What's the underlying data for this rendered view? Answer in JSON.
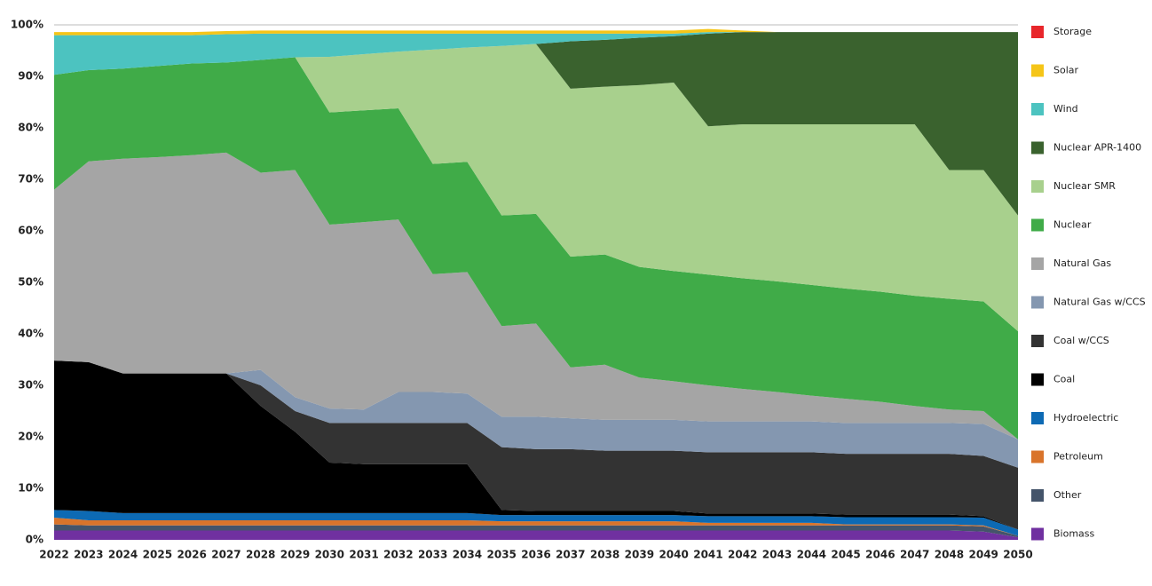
{
  "chart_data": {
    "type": "stacked_area",
    "categories": [
      "2022",
      "2023",
      "2024",
      "2025",
      "2026",
      "2027",
      "2028",
      "2029",
      "2030",
      "2031",
      "2032",
      "2033",
      "2034",
      "2035",
      "2036",
      "2037",
      "2038",
      "2039",
      "2040",
      "2041",
      "2042",
      "2043",
      "2044",
      "2045",
      "2046",
      "2047",
      "2048",
      "2049",
      "2050"
    ],
    "ylim": [
      0,
      100
    ],
    "yticks": [
      {
        "value": 0,
        "label": "0%"
      },
      {
        "value": 10,
        "label": "10%"
      },
      {
        "value": 20,
        "label": "20%"
      },
      {
        "value": 30,
        "label": "30%"
      },
      {
        "value": 40,
        "label": "40%"
      },
      {
        "value": 50,
        "label": "50%"
      },
      {
        "value": 60,
        "label": "60%"
      },
      {
        "value": 70,
        "label": "70%"
      },
      {
        "value": 80,
        "label": "80%"
      },
      {
        "value": 90,
        "label": "90%"
      },
      {
        "value": 100,
        "label": "100%"
      }
    ],
    "series": [
      {
        "name": "Biomass",
        "color": "#7030a0",
        "values": [
          1.8,
          1.8,
          1.8,
          1.8,
          1.8,
          1.8,
          1.8,
          1.8,
          1.8,
          1.8,
          1.8,
          1.8,
          1.8,
          1.8,
          1.8,
          1.8,
          1.8,
          1.8,
          1.8,
          1.8,
          1.8,
          1.8,
          1.8,
          1.8,
          1.8,
          1.8,
          1.8,
          1.6,
          0.5
        ]
      },
      {
        "name": "Other",
        "color": "#44546a",
        "values": [
          1.2,
          1.0,
          1.0,
          1.0,
          1.0,
          1.0,
          1.0,
          1.0,
          1.0,
          1.0,
          1.0,
          1.0,
          1.0,
          1.0,
          1.0,
          1.0,
          1.0,
          1.0,
          1.0,
          1.0,
          1.0,
          1.0,
          1.0,
          1.0,
          1.0,
          1.0,
          1.0,
          1.0,
          0.3
        ]
      },
      {
        "name": "Petroleum",
        "color": "#d9742b",
        "values": [
          1.3,
          1.0,
          1.0,
          1.0,
          1.0,
          1.0,
          1.0,
          1.0,
          1.0,
          1.0,
          1.0,
          1.0,
          1.0,
          0.8,
          0.8,
          0.8,
          0.8,
          0.8,
          0.8,
          0.5,
          0.5,
          0.5,
          0.5,
          0.2,
          0.2,
          0.2,
          0.2,
          0.2,
          0
        ]
      },
      {
        "name": "Hydroelectric",
        "color": "#0d6ab4",
        "values": [
          1.5,
          1.8,
          1.4,
          1.4,
          1.4,
          1.4,
          1.4,
          1.4,
          1.4,
          1.4,
          1.4,
          1.4,
          1.4,
          1.2,
          1.2,
          1.2,
          1.2,
          1.2,
          1.2,
          1.3,
          1.3,
          1.3,
          1.3,
          1.4,
          1.4,
          1.4,
          1.4,
          1.5,
          1.2
        ]
      },
      {
        "name": "Coal",
        "color": "#000000",
        "values": [
          29,
          28.9,
          27.1,
          27.1,
          27.1,
          27.1,
          20.8,
          15.8,
          9.8,
          9.5,
          9.5,
          9.5,
          9.5,
          1.0,
          0.8,
          0.8,
          0.8,
          0.8,
          0.8,
          0.5,
          0.5,
          0.5,
          0.5,
          0.5,
          0.5,
          0.5,
          0.5,
          0.3,
          0
        ]
      },
      {
        "name": "Coal w/CCS",
        "color": "#333333",
        "values": [
          0,
          0,
          0,
          0,
          0,
          0,
          4,
          4,
          7.7,
          8,
          8,
          8,
          8,
          12.2,
          12,
          12,
          11.7,
          11.7,
          11.7,
          11.9,
          11.9,
          11.9,
          11.9,
          11.8,
          11.8,
          11.8,
          11.8,
          11.7,
          12
        ]
      },
      {
        "name": "Natural Gas w/CCS",
        "color": "#8497b0",
        "values": [
          0,
          0,
          0,
          0,
          0,
          0,
          3,
          2.7,
          2.8,
          2.6,
          6,
          6,
          5.7,
          5.9,
          6.3,
          6,
          6,
          6,
          6,
          6,
          6,
          6,
          6,
          6,
          6,
          6,
          6,
          6.2,
          5.5
        ]
      },
      {
        "name": "Natural Gas",
        "color": "#a5a5a5",
        "values": [
          33.2,
          39,
          41.7,
          42,
          42.4,
          42.9,
          38.3,
          44.1,
          35.7,
          36.4,
          33.5,
          22.9,
          23.6,
          17.6,
          18.1,
          9.9,
          10.7,
          8.2,
          7.5,
          7,
          6.3,
          5.7,
          5,
          4.7,
          4.1,
          3.3,
          2.6,
          2.5,
          0
        ]
      },
      {
        "name": "Nuclear",
        "color": "#40ab48",
        "values": [
          22.3,
          17.7,
          17.5,
          17.7,
          17.8,
          17.5,
          21.9,
          21.9,
          21.8,
          21.7,
          21.6,
          21.4,
          21.4,
          21.5,
          21.3,
          21.5,
          21.4,
          21.5,
          21.4,
          21.5,
          21.5,
          21.5,
          21.5,
          21.4,
          21.4,
          21.4,
          21.5,
          21.3,
          21
        ]
      },
      {
        "name": "Nuclear SMR",
        "color": "#a8d08d",
        "values": [
          0,
          0,
          0,
          0,
          0,
          0,
          0,
          0,
          10.8,
          10.9,
          11,
          22.2,
          22.2,
          32.9,
          33,
          32.6,
          32.6,
          35.3,
          36.6,
          28.8,
          29.9,
          30.5,
          31.2,
          31.9,
          32.5,
          33.3,
          25,
          25.5,
          22.5
        ]
      },
      {
        "name": "Nuclear APR-1400",
        "color": "#3a622e",
        "values": [
          0,
          0,
          0,
          0,
          0,
          0,
          0,
          0,
          0,
          0,
          0,
          0,
          0,
          0,
          0,
          9.2,
          9.1,
          9.2,
          9,
          18,
          17.9,
          17.9,
          17.9,
          17.9,
          17.9,
          17.9,
          26.8,
          26.8,
          35.6
        ]
      },
      {
        "name": "Wind",
        "color": "#4cc3c0",
        "values": [
          7.7,
          6.8,
          6.5,
          6,
          5.5,
          5.5,
          5.1,
          4.6,
          4.5,
          4,
          3.5,
          3.1,
          2.7,
          2.4,
          2,
          1.5,
          1.2,
          0.8,
          0.5,
          0.3,
          0,
          0,
          0,
          0,
          0,
          0,
          0,
          0,
          0
        ]
      },
      {
        "name": "Solar",
        "color": "#f5c518",
        "values": [
          0.6,
          0.6,
          0.6,
          0.6,
          0.6,
          0.6,
          0.6,
          0.6,
          0.6,
          0.6,
          0.6,
          0.6,
          0.6,
          0.6,
          0.6,
          0.6,
          0.6,
          0.6,
          0.6,
          0.6,
          0.3,
          0,
          0,
          0,
          0,
          0,
          0,
          0,
          0
        ]
      },
      {
        "name": "Storage",
        "color": "#e8262b",
        "values": [
          0,
          0,
          0,
          0,
          0,
          0,
          0,
          0,
          0,
          0,
          0,
          0,
          0,
          0,
          0,
          0,
          0,
          0,
          0,
          0,
          0,
          0,
          0,
          0,
          0,
          0,
          0,
          0,
          0
        ]
      }
    ]
  }
}
